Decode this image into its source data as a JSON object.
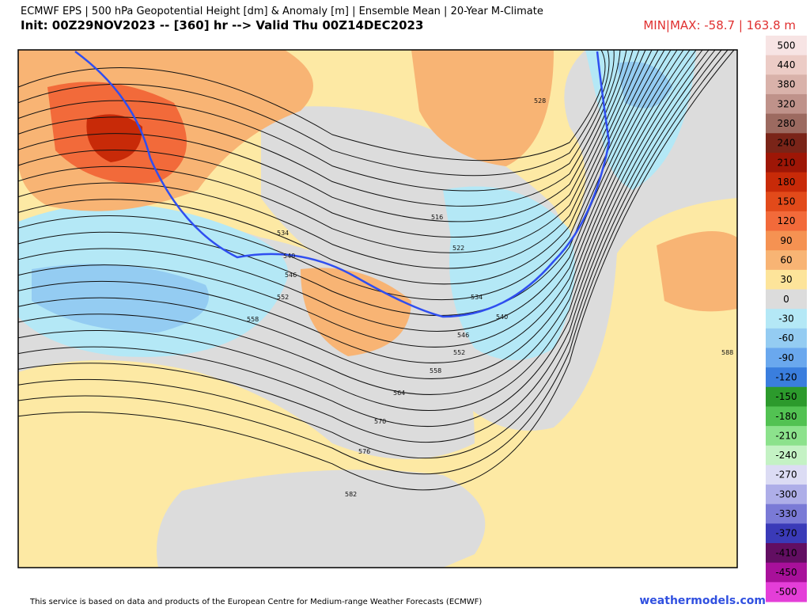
{
  "header": {
    "line1": "ECMWF EPS | 500 hPa Geopotential Height [dm] & Anomaly [m] | Ensemble Mean | 20-Year M-Climate",
    "line2": "Init: 00Z29NOV2023 -- [360] hr --> Valid Thu 00Z14DEC2023",
    "minmax": "MIN|MAX: -58.7 | 163.8 m"
  },
  "colorbar": [
    {
      "label": "500",
      "color": "#f7e4e4"
    },
    {
      "label": "440",
      "color": "#ecccc6"
    },
    {
      "label": "380",
      "color": "#d9b2aa"
    },
    {
      "label": "320",
      "color": "#bf928a"
    },
    {
      "label": "280",
      "color": "#9c6a60"
    },
    {
      "label": "240",
      "color": "#7a2418"
    },
    {
      "label": "210",
      "color": "#9e1606"
    },
    {
      "label": "180",
      "color": "#c82a08"
    },
    {
      "label": "150",
      "color": "#e24a1a"
    },
    {
      "label": "120",
      "color": "#f26a3a"
    },
    {
      "label": "90",
      "color": "#f59252"
    },
    {
      "label": "60",
      "color": "#f8b474"
    },
    {
      "label": "30",
      "color": "#fde49a"
    },
    {
      "label": "0",
      "color": "#dcdcdc"
    },
    {
      "label": "-30",
      "color": "#b4e8f6"
    },
    {
      "label": "-60",
      "color": "#94ccf2"
    },
    {
      "label": "-90",
      "color": "#6aa8ee"
    },
    {
      "label": "-120",
      "color": "#3a7ede"
    },
    {
      "label": "-150",
      "color": "#2c9a2c"
    },
    {
      "label": "-180",
      "color": "#52c252"
    },
    {
      "label": "-210",
      "color": "#8ce28c"
    },
    {
      "label": "-240",
      "color": "#c4f2c4"
    },
    {
      "label": "-270",
      "color": "#dcdcf4"
    },
    {
      "label": "-300",
      "color": "#aeaee8"
    },
    {
      "label": "-330",
      "color": "#7a7ad6"
    },
    {
      "label": "-370",
      "color": "#3a3ab8"
    },
    {
      "label": "-410",
      "color": "#620e62"
    },
    {
      "label": "-450",
      "color": "#a8109a"
    },
    {
      "label": "-500",
      "color": "#e43ed8"
    }
  ],
  "contour_labels": [
    "528",
    "516",
    "534",
    "540",
    "546",
    "552",
    "558",
    "522",
    "534",
    "540",
    "546",
    "552",
    "558",
    "564",
    "570",
    "576",
    "582",
    "588"
  ],
  "footer": {
    "notice": "This service is based on data and products of the European Centre for Medium-range Weather Forecasts (ECMWF)",
    "site": "weathermodels.com"
  }
}
